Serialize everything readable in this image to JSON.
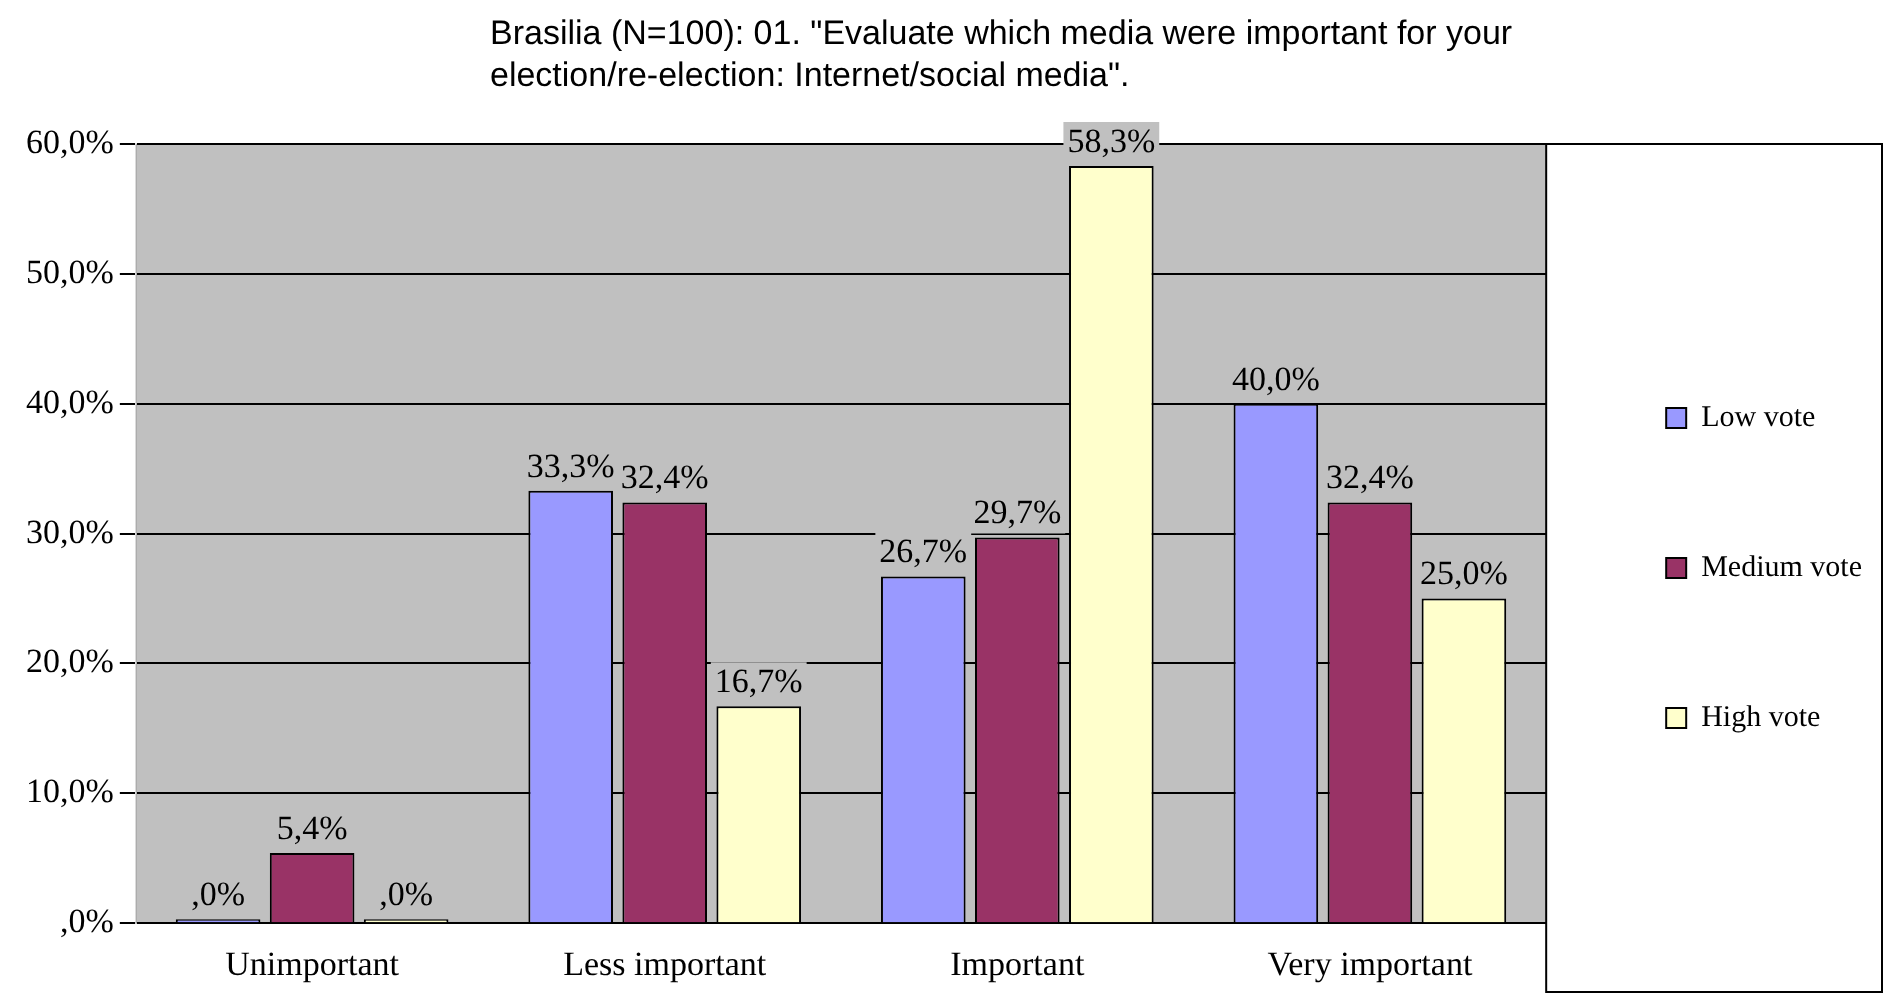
{
  "chart_data": {
    "type": "bar",
    "title": "Brasilia (N=100): 01. \"Evaluate which media were important for your election/re-election: Internet/social media\".",
    "categories": [
      "Unimportant",
      "Less important",
      "Important",
      "Very important"
    ],
    "series": [
      {
        "name": "Low vote",
        "color": "#9999ff",
        "values": [
          0,
          33.3,
          26.7,
          40.0
        ],
        "value_labels": [
          ",0%",
          "33,3%",
          "26,7%",
          "40,0%"
        ]
      },
      {
        "name": "Medium vote",
        "color": "#993366",
        "values": [
          5.4,
          32.4,
          29.7,
          32.4
        ],
        "value_labels": [
          "5,4%",
          "32,4%",
          "29,7%",
          "32,4%"
        ]
      },
      {
        "name": "High vote",
        "color": "#ffffcc",
        "values": [
          0,
          16.7,
          58.3,
          25.0
        ],
        "value_labels": [
          ",0%",
          "16,7%",
          "58,3%",
          "25,0%"
        ]
      }
    ],
    "ylim": [
      0,
      60
    ],
    "yticks": [
      {
        "value": 0,
        "label": ",0%"
      },
      {
        "value": 10,
        "label": "10,0%"
      },
      {
        "value": 20,
        "label": "20,0%"
      },
      {
        "value": 30,
        "label": "30,0%"
      },
      {
        "value": 40,
        "label": "40,0%"
      },
      {
        "value": 50,
        "label": "50,0%"
      },
      {
        "value": 60,
        "label": "60,0%"
      }
    ],
    "grid": "y",
    "legend": "right"
  }
}
